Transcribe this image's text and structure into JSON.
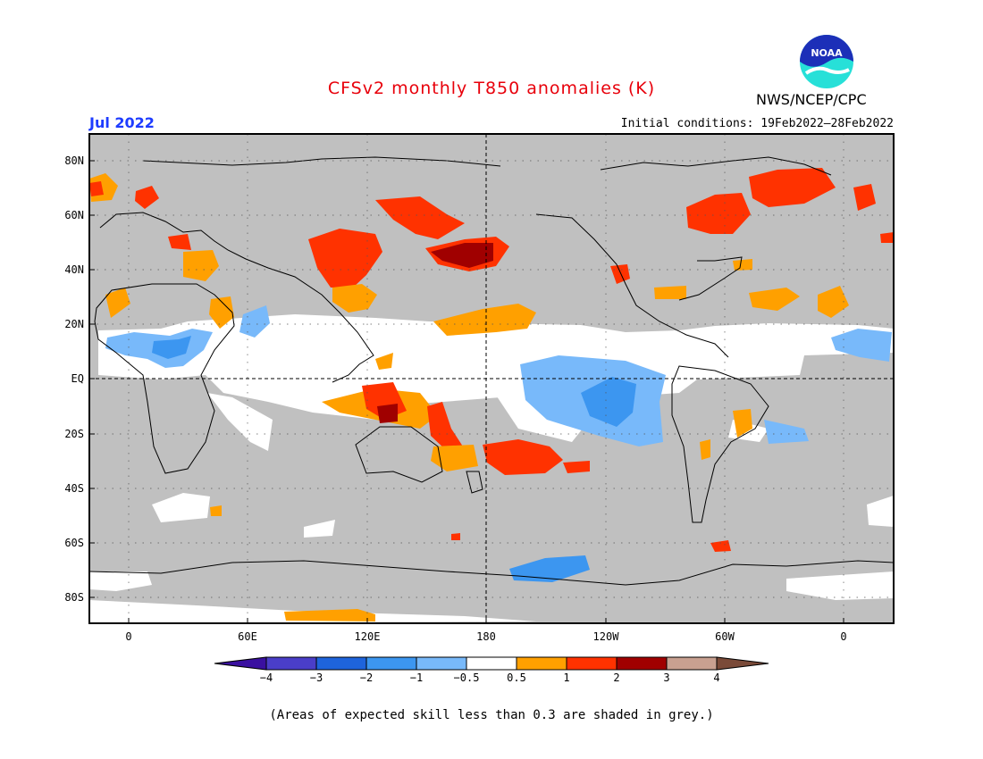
{
  "title": "CFSv2 monthly T850 anomalies (K)",
  "month": "Jul 2022",
  "initial_conditions": "Initial conditions: 19Feb2022–28Feb2022",
  "agency": "NWS/NCEP/CPC",
  "logo_text": "NOAA",
  "footnote": "(Areas of expected skill less than 0.3 are shaded in grey.)",
  "colors": {
    "title": "#e8000b",
    "month": "#1e3cff",
    "skill_grey": "#c0c0c0",
    "neutral": "#ffffff"
  },
  "lat_labels": [
    "80N",
    "60N",
    "40N",
    "20N",
    "EQ",
    "20S",
    "40S",
    "60S",
    "80S"
  ],
  "lon_labels": [
    "0",
    "60E",
    "120E",
    "180",
    "120W",
    "60W",
    "0"
  ],
  "colorbar": {
    "ticks": [
      "−4",
      "−3",
      "−2",
      "−1",
      "−0.5",
      "0.5",
      "1",
      "2",
      "3",
      "4"
    ],
    "colors": [
      "#3a10a0",
      "#4a3ec8",
      "#1e64dc",
      "#3c96f0",
      "#78b9fa",
      "#ffffff",
      "#ffa000",
      "#ff3200",
      "#a00000",
      "#c8a090",
      "#7a4a38"
    ]
  }
}
